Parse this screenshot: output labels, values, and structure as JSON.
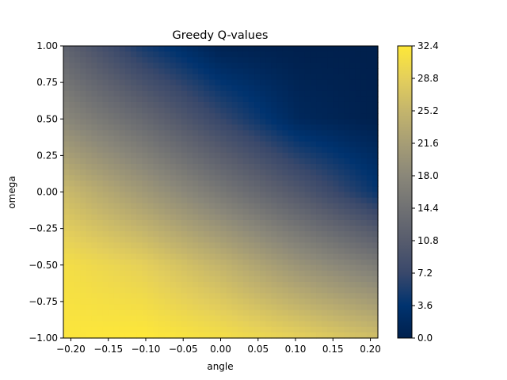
{
  "chart_data": {
    "type": "heatmap",
    "title": "Greedy Q-values",
    "xlabel": "angle",
    "ylabel": "omega",
    "xlim": [
      -0.21,
      0.21
    ],
    "ylim": [
      -1.0,
      1.0
    ],
    "x_ticks": [
      -0.2,
      -0.15,
      -0.1,
      -0.05,
      0.0,
      0.05,
      0.1,
      0.15,
      0.2
    ],
    "x_tick_labels": [
      "−0.20",
      "−0.15",
      "−0.10",
      "−0.05",
      "0.00",
      "0.05",
      "0.10",
      "0.15",
      "0.20"
    ],
    "y_ticks": [
      -1.0,
      -0.75,
      -0.5,
      -0.25,
      0.0,
      0.25,
      0.5,
      0.75,
      1.0
    ],
    "y_tick_labels": [
      "−1.00",
      "−0.75",
      "−0.50",
      "−0.25",
      "0.00",
      "0.25",
      "0.50",
      "0.75",
      "1.00"
    ],
    "colorbar": {
      "colormap": "cividis",
      "range": [
        0.0,
        32.4
      ],
      "ticks": [
        0.0,
        3.6,
        7.2,
        10.8,
        14.4,
        18.0,
        21.6,
        25.2,
        28.8,
        32.4
      ],
      "tick_labels": [
        "0.0",
        "3.6",
        "7.2",
        "10.8",
        "14.4",
        "18.0",
        "21.6",
        "25.2",
        "28.8",
        "32.4"
      ],
      "stops": [
        "#00204d",
        "#00336f",
        "#39486b",
        "#575c6d",
        "#707173",
        "#8a8779",
        "#a69d75",
        "#c4b56c",
        "#e4cf5b",
        "#fee838"
      ]
    },
    "grid_samples": {
      "angle": [
        -0.21,
        -0.105,
        0.0,
        0.105,
        0.21
      ],
      "omega": [
        1.0,
        0.5,
        0.0,
        -0.5,
        -1.0
      ],
      "values": [
        [
          12.0,
          5.0,
          0.5,
          0.0,
          0.0
        ],
        [
          18.0,
          13.0,
          7.0,
          1.5,
          0.0
        ],
        [
          26.0,
          21.0,
          15.5,
          10.0,
          4.0
        ],
        [
          31.0,
          29.0,
          25.0,
          20.0,
          16.0
        ],
        [
          32.0,
          32.4,
          31.0,
          29.0,
          26.5
        ]
      ]
    }
  }
}
